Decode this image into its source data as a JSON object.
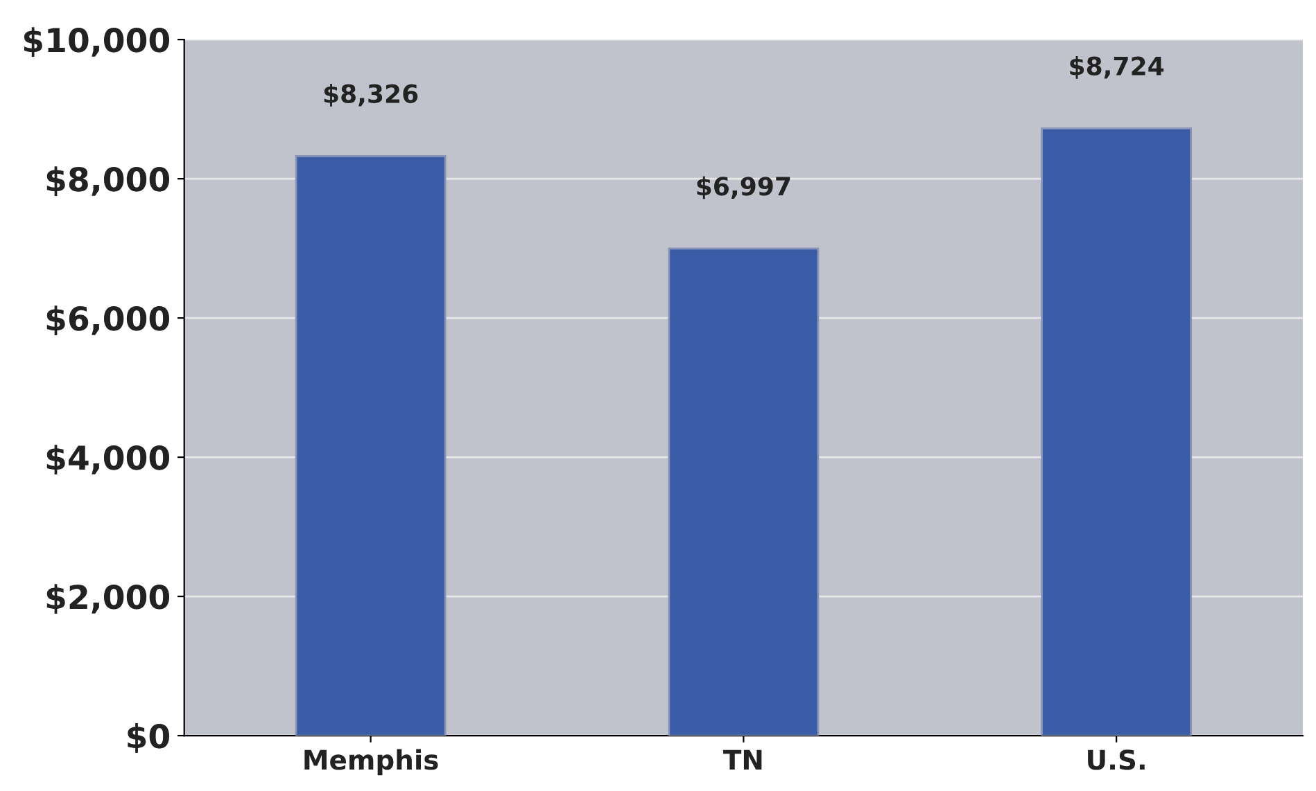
{
  "chart_data": {
    "type": "bar",
    "categories": [
      "Memphis",
      "TN",
      "U.S."
    ],
    "values": [
      8326,
      6997,
      8724
    ],
    "color": "#3a5ba5",
    "value_labels": [
      "$8,326",
      "$6,997",
      "$8,724"
    ],
    "ylim": [
      0,
      10000
    ],
    "yticks": [
      {
        "value": 0,
        "label": "$0"
      },
      {
        "value": 2000,
        "label": "$2,000"
      },
      {
        "value": 4000,
        "label": "$4,000"
      },
      {
        "value": 6000,
        "label": "$6,000"
      },
      {
        "value": 8000,
        "label": "$8,000"
      },
      {
        "value": 10000,
        "label": "$10,000"
      }
    ],
    "grid": "y"
  }
}
